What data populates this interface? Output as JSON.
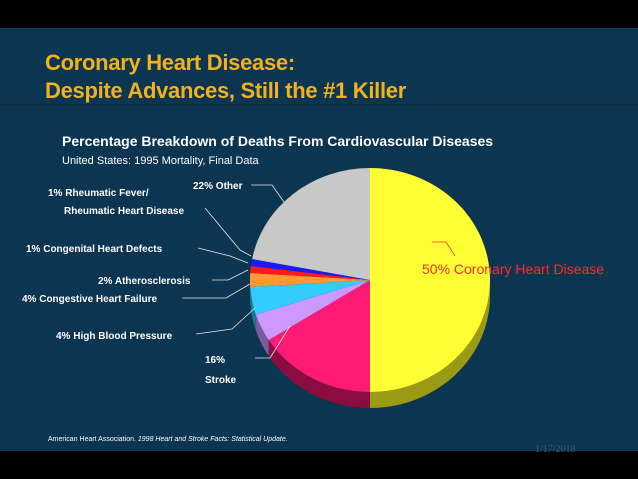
{
  "slide": {
    "title_line1": "Coronary Heart Disease:",
    "title_line2": "Despite Advances, Still the #1 Killer",
    "subtitle": "Percentage Breakdown of Deaths From Cardiovascular Diseases",
    "subsubtitle": "United States: 1995 Mortality, Final Data",
    "source_org": "American Heart Association.",
    "source_pub": "1998 Heart and Stroke Facts: Statistical Update.",
    "date": "1/17/2018"
  },
  "chart_data": {
    "type": "pie",
    "title": "Percentage Breakdown of Deaths From Cardiovascular Diseases",
    "subtitle": "United States: 1995 Mortality, Final Data",
    "slices": [
      {
        "label": "50% Coronary Heart Disease",
        "value": 50,
        "color": "#ffff33",
        "side": "#9a9a14"
      },
      {
        "label": "16% Stroke",
        "value": 16,
        "color": "#ff1a75",
        "side": "#8a0c40"
      },
      {
        "label": "4% High Blood Pressure",
        "value": 4,
        "color": "#cc99ff",
        "side": "#7a5aa0"
      },
      {
        "label": "4% Congestive Heart Failure",
        "value": 4,
        "color": "#33ccff",
        "side": "#1a7a9a"
      },
      {
        "label": "2% Atherosclerosis",
        "value": 2,
        "color": "#ff9933",
        "side": "#9a5a1a"
      },
      {
        "label": "1% Congenital Heart Defects",
        "value": 1,
        "color": "#ff1a1a",
        "side": "#8a0a0a"
      },
      {
        "label": "1% Rheumatic Fever/ Rheumatic Heart Disease",
        "value": 1,
        "color": "#1a1aff",
        "side": "#0a0a8a"
      },
      {
        "label": "22% Other",
        "value": 22,
        "color": "#c8c8c8",
        "side": "#7a7a7a"
      }
    ]
  }
}
